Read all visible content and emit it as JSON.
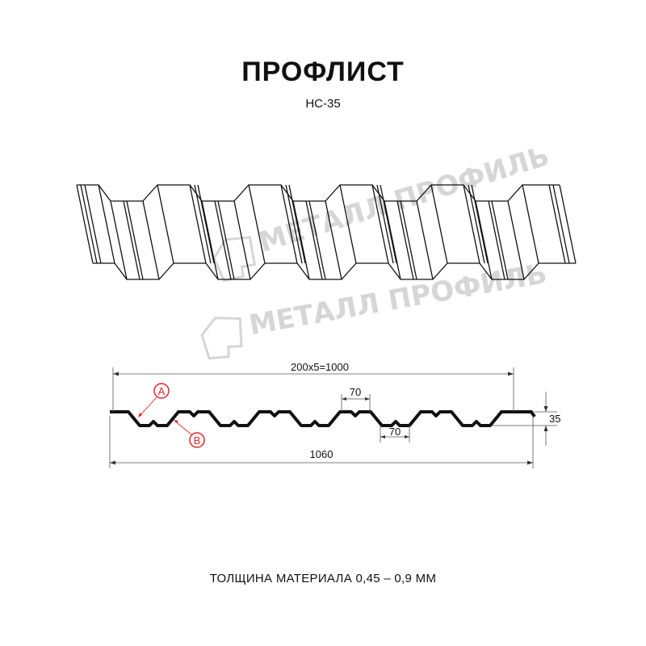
{
  "title": "ПРОФЛИСТ",
  "subtitle": "НС-35",
  "watermark": "МЕТАЛЛ ПРОФИЛЬ",
  "dimensions": {
    "overall_pitch": "200x5=1000",
    "total_width": "1060",
    "top_flat": "70",
    "bottom_flat": "70",
    "height": "35"
  },
  "markers": {
    "a": "A",
    "b": "B"
  },
  "footer": "ТОЛЩИНА МАТЕРИАЛА 0,45 – 0,9 ММ",
  "colors": {
    "marker": "#e0262a",
    "line": "#111111",
    "watermark": "#d6d6d6"
  }
}
